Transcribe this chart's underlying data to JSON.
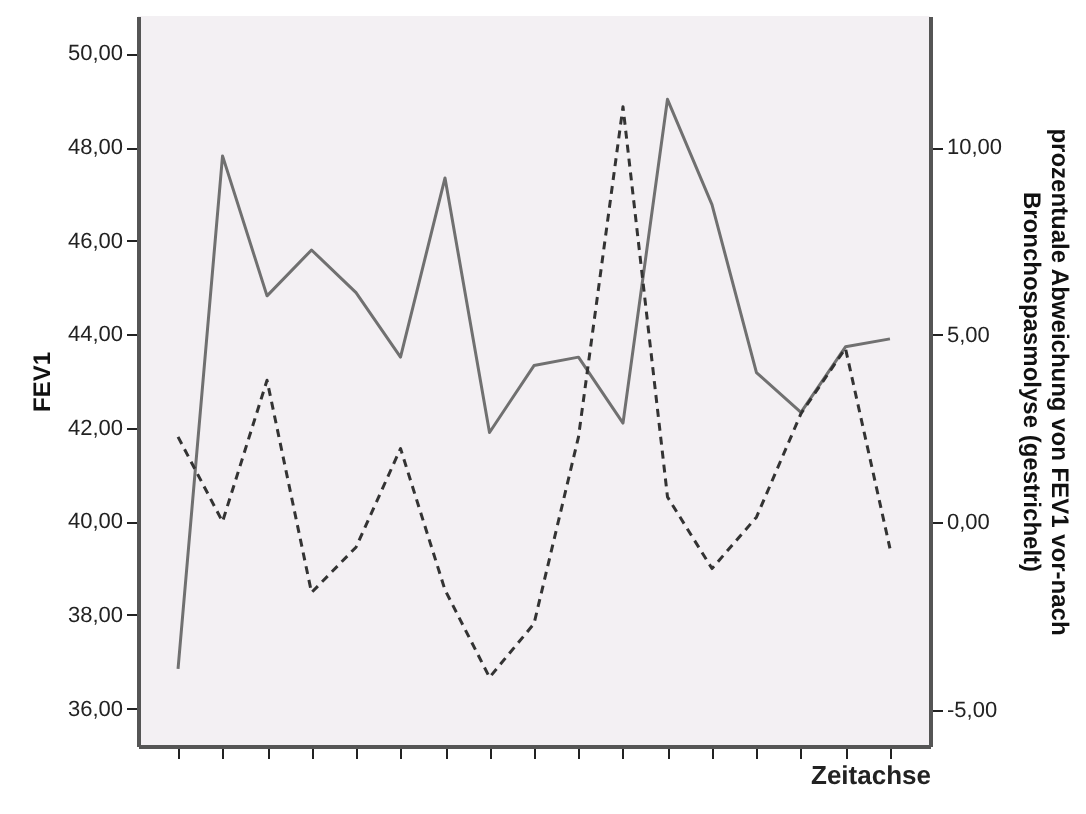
{
  "chart_data": {
    "type": "line",
    "xlabel": "Zeitachse",
    "ylabel": "FEV1",
    "y2label": "prozentuale Abweichung von FEV1 vor-nach\nBronchospasmolyse (gestrichelt)",
    "categories": [
      null,
      null,
      null,
      null,
      null,
      null,
      null,
      null,
      null,
      null,
      null,
      null,
      null,
      null,
      null,
      null,
      null
    ],
    "series": [
      {
        "color": "#707070",
        "line_style": "solid",
        "values": [
          36.85,
          47.81,
          44.82,
          45.8,
          44.89,
          43.51,
          47.34,
          41.9,
          43.33,
          43.51,
          42.1,
          49.02,
          46.77,
          43.18,
          42.33,
          43.73,
          43.9
        ]
      },
      {
        "color": "#333333",
        "line_style": "dashed",
        "axis": "y2",
        "values": [
          2.28,
          0.02,
          3.79,
          -1.87,
          -0.66,
          1.97,
          -1.8,
          -4.13,
          -2.7,
          2.28,
          11.08,
          0.68,
          -1.23,
          0.14,
          2.9,
          4.64,
          -0.69
        ]
      }
    ],
    "ylim": [
      35.2,
      50.8
    ],
    "yticks": [
      {
        "value": 36,
        "label": "36,00"
      },
      {
        "value": 38,
        "label": "38,00"
      },
      {
        "value": 40,
        "label": "40,00"
      },
      {
        "value": 42,
        "label": "42,00"
      },
      {
        "value": 44,
        "label": "44,00"
      },
      {
        "value": 46,
        "label": "46,00"
      },
      {
        "value": 48,
        "label": "48,00"
      },
      {
        "value": 50,
        "label": "50,00"
      }
    ],
    "y2lim": [
      -5.96,
      13.5
    ],
    "y2ticks": [
      {
        "value": -5,
        "label": "-5,00"
      },
      {
        "value": 0,
        "label": "0,00"
      },
      {
        "value": 5,
        "label": "5,00"
      },
      {
        "value": 10,
        "label": "10,00"
      }
    ],
    "tick_labels": "y",
    "grid": false
  }
}
